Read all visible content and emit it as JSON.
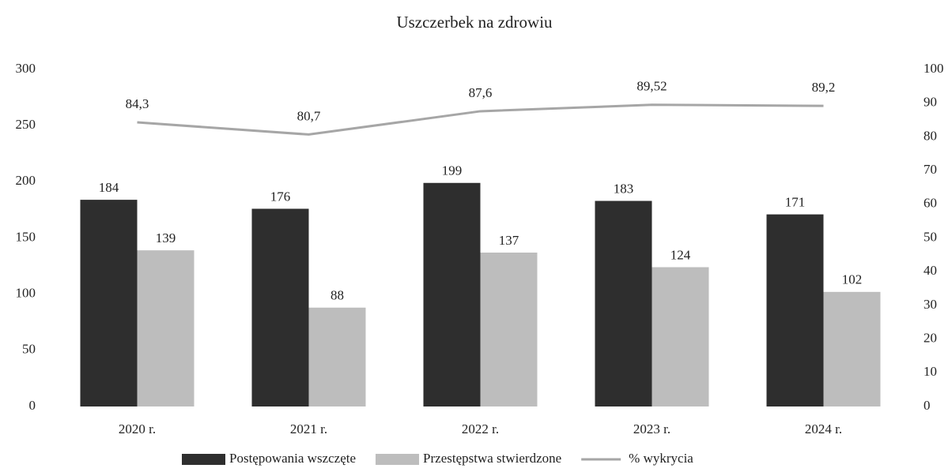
{
  "chart_data": {
    "type": "bar",
    "title": "Uszczerbek na zdrowiu",
    "categories": [
      "2020 r.",
      "2021 r.",
      "2022 r.",
      "2023 r.",
      "2024 r."
    ],
    "series": [
      {
        "name": "Postępowania wszczęte",
        "color": "#2e2e2e",
        "values": [
          184,
          176,
          199,
          183,
          171
        ]
      },
      {
        "name": "Przestępstwa stwierdzone",
        "color": "#bdbdbd",
        "values": [
          139,
          88,
          137,
          124,
          102
        ]
      },
      {
        "name": "% wykrycia",
        "type": "line",
        "axis": "y2",
        "color": "#a6a6a6",
        "values": [
          84.3,
          80.7,
          87.6,
          89.52,
          89.2
        ],
        "value_labels": [
          "84,3",
          "80,7",
          "87,6",
          "89,52",
          "89,2"
        ]
      }
    ],
    "ylim": [
      0,
      300
    ],
    "yticks": [
      0,
      50,
      100,
      150,
      200,
      250,
      300
    ],
    "y2lim": [
      0,
      100
    ],
    "y2ticks": [
      0,
      10,
      20,
      30,
      40,
      50,
      60,
      70,
      80,
      90,
      100
    ],
    "legend": "bottom"
  }
}
